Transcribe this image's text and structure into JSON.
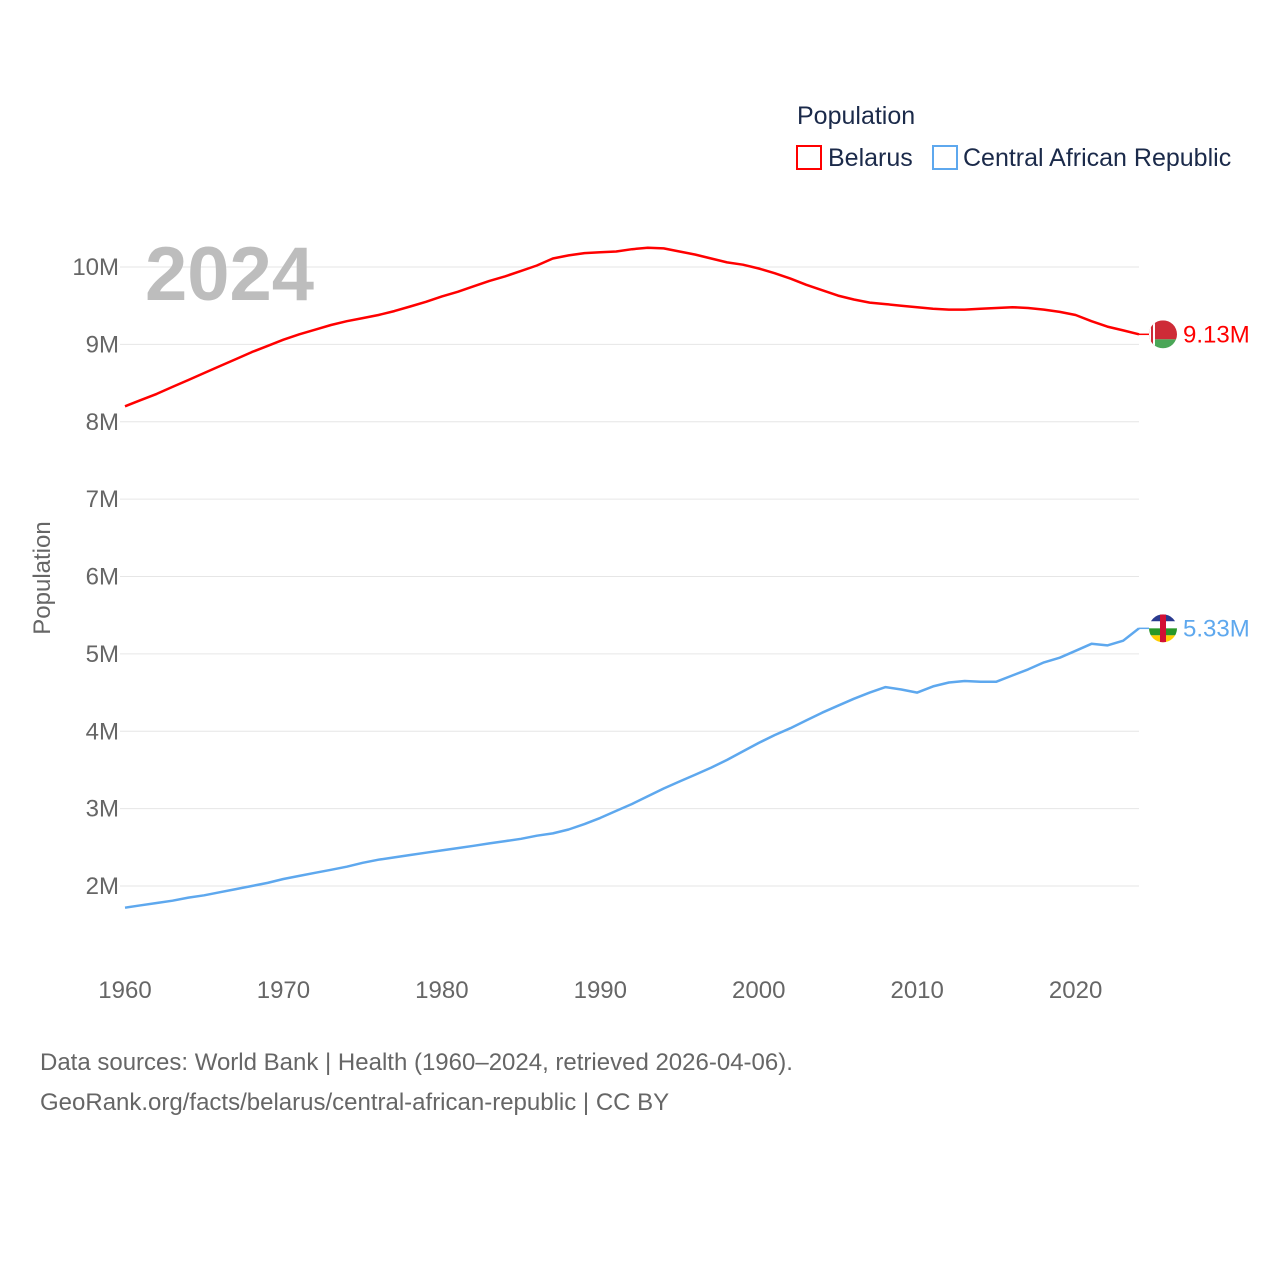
{
  "chart_data": {
    "type": "line",
    "title": "",
    "legend_title": "Population",
    "legend_position": "top-right",
    "ylabel": "Population",
    "xlabel": "",
    "year_label": "2024",
    "xlim": [
      1960,
      2024
    ],
    "ylim": [
      1.4,
      10.5
    ],
    "y_unit": "M",
    "xticks": [
      "1960",
      "1970",
      "1980",
      "1990",
      "2000",
      "2010",
      "2020"
    ],
    "yticks": [
      "2M",
      "3M",
      "4M",
      "5M",
      "6M",
      "7M",
      "8M",
      "9M",
      "10M"
    ],
    "grid": true,
    "x_start": 1960,
    "series": [
      {
        "name": "Belarus",
        "color": "#ff0000",
        "end_label": "9.13M",
        "flag": "belarus-flag",
        "values": [
          8.2,
          8.28,
          8.36,
          8.45,
          8.54,
          8.63,
          8.72,
          8.81,
          8.9,
          8.98,
          9.06,
          9.13,
          9.19,
          9.25,
          9.3,
          9.34,
          9.38,
          9.43,
          9.49,
          9.55,
          9.62,
          9.68,
          9.75,
          9.82,
          9.88,
          9.95,
          10.02,
          10.11,
          10.15,
          10.18,
          10.19,
          10.2,
          10.23,
          10.25,
          10.24,
          10.2,
          10.16,
          10.11,
          10.06,
          10.03,
          9.98,
          9.92,
          9.85,
          9.77,
          9.7,
          9.63,
          9.58,
          9.54,
          9.52,
          9.5,
          9.48,
          9.46,
          9.45,
          9.45,
          9.46,
          9.47,
          9.48,
          9.47,
          9.45,
          9.42,
          9.38,
          9.3,
          9.23,
          9.18,
          9.13
        ]
      },
      {
        "name": "Central African Republic",
        "color": "#5ea8ee",
        "end_label": "5.33M",
        "flag": "central-african-republic-flag",
        "values": [
          1.72,
          1.75,
          1.78,
          1.81,
          1.85,
          1.88,
          1.92,
          1.96,
          2.0,
          2.04,
          2.09,
          2.13,
          2.17,
          2.21,
          2.25,
          2.3,
          2.34,
          2.37,
          2.4,
          2.43,
          2.46,
          2.49,
          2.52,
          2.55,
          2.58,
          2.61,
          2.65,
          2.68,
          2.73,
          2.8,
          2.88,
          2.97,
          3.06,
          3.16,
          3.26,
          3.35,
          3.44,
          3.53,
          3.63,
          3.74,
          3.85,
          3.95,
          4.04,
          4.14,
          4.24,
          4.33,
          4.42,
          4.5,
          4.57,
          4.54,
          4.5,
          4.58,
          4.63,
          4.65,
          4.64,
          4.64,
          4.72,
          4.8,
          4.89,
          4.95,
          5.04,
          5.13,
          5.11,
          5.17,
          5.33
        ]
      }
    ]
  },
  "footer": {
    "line1": "Data sources: World Bank | Health (1960–2024, retrieved 2026-04-06).",
    "line2": "GeoRank.org/facts/belarus/central-african-republic | CC BY"
  }
}
